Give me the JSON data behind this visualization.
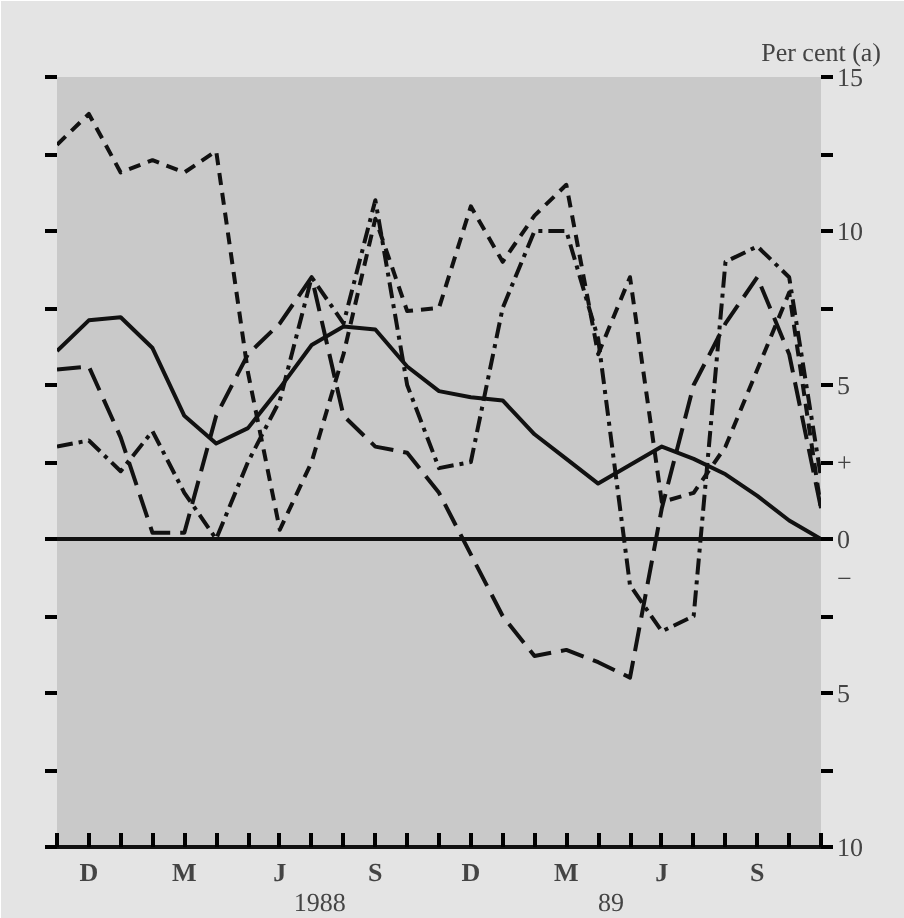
{
  "chart_data": {
    "type": "line",
    "ylabel": "Per cent (a)",
    "annotations": [
      "1988",
      "89",
      "+",
      "−"
    ],
    "categories": [
      null,
      "D",
      null,
      null,
      "M",
      null,
      null,
      "J",
      null,
      null,
      "S",
      null,
      null,
      "D",
      null,
      null,
      "M",
      null,
      null,
      "J",
      null,
      null,
      "S",
      null,
      null
    ],
    "ylim": [
      -10,
      15
    ],
    "yticks": [
      15,
      {
        "value": 12.5,
        "label": null
      },
      10,
      {
        "value": 7.5,
        "label": null
      },
      5,
      {
        "value": 2.5,
        "label": null
      },
      0,
      {
        "value": -2.5,
        "label": null
      },
      {
        "value": -5,
        "label": "5"
      },
      {
        "value": -7.5,
        "label": null
      },
      {
        "value": -10,
        "label": "10"
      }
    ],
    "grid": false,
    "ref_lines": [
      {
        "axis": "y",
        "value": 0,
        "color": "#111111",
        "line_style": "solid"
      }
    ],
    "series": [
      {
        "color": "#111111",
        "line_style": "solid",
        "values": [
          6.1,
          7.1,
          7.2,
          6.2,
          4.0,
          3.1,
          3.6,
          4.9,
          6.3,
          6.9,
          6.8,
          5.6,
          4.8,
          4.6,
          4.5,
          3.4,
          2.6,
          1.8,
          2.4,
          3.0,
          2.6,
          2.1,
          1.4,
          0.6,
          0
        ]
      },
      {
        "color": "#111111",
        "line_style": "dashed",
        "values": [
          12.8,
          13.8,
          11.9,
          12.3,
          11.9,
          12.6,
          5.4,
          0.3,
          2.5,
          6,
          10.4,
          7.4,
          7.5,
          10.8,
          9,
          10.5,
          11.5,
          6,
          8.5,
          1.2,
          1.5,
          3,
          5.5,
          8,
          1
        ]
      },
      {
        "color": "#111111",
        "line_style": "dashdot",
        "values": [
          3,
          3.2,
          2.2,
          3.5,
          1.5,
          0,
          2.5,
          4.5,
          8.5,
          7,
          11,
          5,
          2.3,
          2.5,
          7.5,
          10,
          10,
          6.5,
          -1.5,
          -3,
          -2.5,
          9,
          9.5,
          8.5,
          2
        ]
      },
      {
        "color": "#111111",
        "line_style": "longdash",
        "values": [
          5.5,
          5.6,
          3.3,
          0.2,
          0.2,
          4,
          6,
          7,
          8.5,
          4,
          3,
          2.8,
          1.5,
          -0.5,
          -2.5,
          -3.8,
          -3.6,
          -4,
          -4.5,
          1,
          5,
          7,
          8.5,
          6,
          1
        ]
      }
    ]
  }
}
